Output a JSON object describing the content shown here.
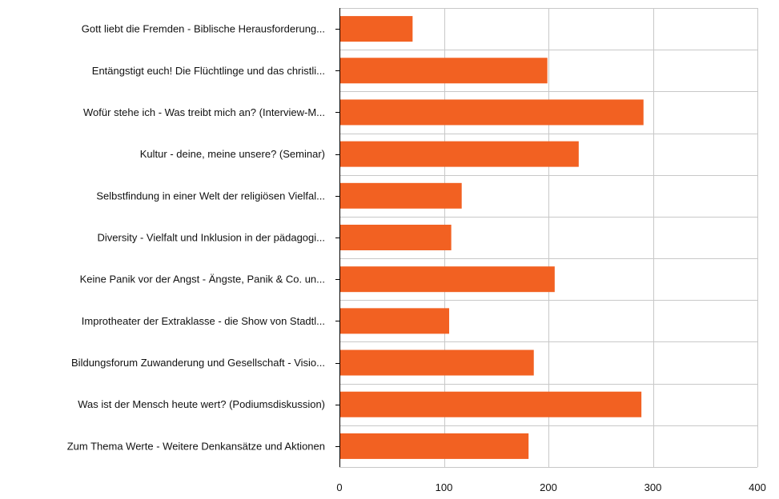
{
  "chart_data": {
    "type": "bar",
    "orientation": "horizontal",
    "categories": [
      "Gott liebt die Fremden - Biblische Herausforderung...",
      "Entängstigt euch! Die Flüchtlinge und das christli...",
      "Wofür stehe ich - Was treibt mich an? (Interview-M...",
      "Kultur - deine, meine unsere? (Seminar)",
      "Selbstfindung in einer Welt der religiösen Vielfal...",
      "Diversity - Vielfalt und Inklusion in der pädagogi...",
      "Keine Panik vor der Angst - Ängste, Panik & Co. un...",
      "Improtheater der Extraklasse - die Show von Stadtl...",
      "Bildungsforum Zuwanderung und Gesellschaft - Visio...",
      "Was ist der Mensch heute wert? (Podiumsdiskussion)",
      "Zum Thema Werte - Weitere Denkansätze und Aktionen"
    ],
    "values": [
      70,
      199,
      291,
      229,
      117,
      107,
      206,
      105,
      186,
      289,
      181
    ],
    "xlim": [
      0,
      400
    ],
    "xticks": [
      0,
      100,
      200,
      300,
      400
    ],
    "grid": true,
    "title": "",
    "xlabel": "",
    "ylabel": "",
    "bar_color": "#f26122"
  }
}
